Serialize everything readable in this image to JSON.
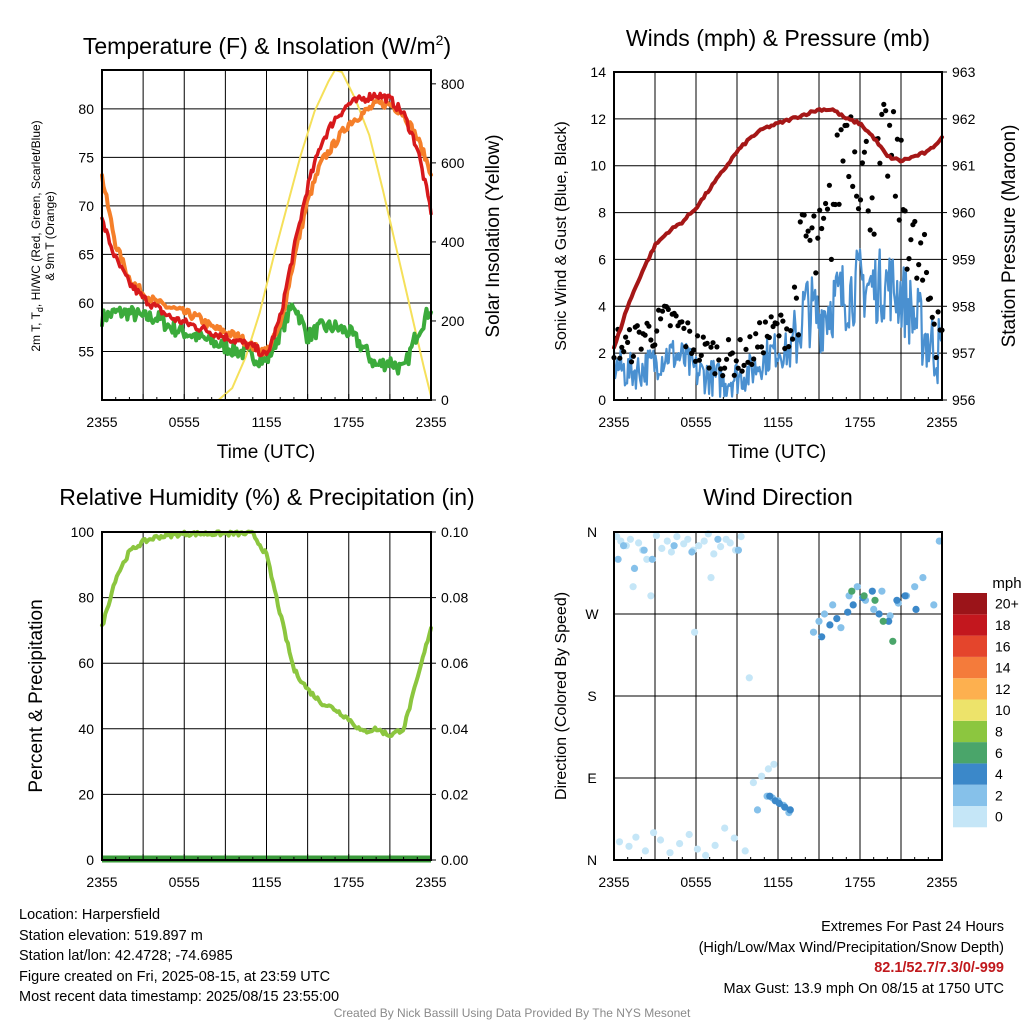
{
  "panels": {
    "temp": {
      "title_main": "Temperature (F) & Insolation (W/m",
      "title_sup": "2",
      "title_end": ")",
      "ylabel_line1": "2m T, T",
      "ylabel_sub": "d",
      "ylabel_line1_end": ", HI/WC (Red, Green, Scarlet/Blue)",
      "ylabel_line2": "& 9m T (Orange)",
      "y2label": "Solar Insolation (Yellow)",
      "xlabel": "Time (UTC)"
    },
    "wind": {
      "title": "Winds (mph) & Pressure (mb)",
      "ylabel": "Sonic Wind & Gust (Blue, Black)",
      "y2label": "Station Pressure (Maroon)",
      "xlabel": "Time (UTC)"
    },
    "rh": {
      "title": "Relative Humidity (%) & Precipitation (in)",
      "ylabel": "Percent & Precipitation"
    },
    "dir": {
      "title": "Wind Direction",
      "ylabel": "Direction (Colored By Speed)",
      "colorbar_title": "mph"
    }
  },
  "colors": {
    "temp_2m": "#d7191c",
    "temp_9m": "#f57f2a",
    "dewpoint": "#3bab3b",
    "insolation": "#f5e05a",
    "wind": "#4a90d0",
    "gust": "#000000",
    "pressure": "#a51717",
    "rh": "#8cc63f",
    "precip": "#3a9a3a"
  },
  "chart_data": [
    {
      "id": "temp",
      "type": "line",
      "title": "Temperature (F) & Insolation (W/m2)",
      "xlabel": "Time (UTC)",
      "ylabel": "2m T, Td, HI/WC (Red, Green, Scarlet/Blue) & 9m T (Orange)",
      "y2label": "Solar Insolation (Yellow)",
      "xticks": [
        "2355",
        "0555",
        "1155",
        "1755",
        "2355"
      ],
      "ylim": [
        50,
        84
      ],
      "yticks": [
        55,
        60,
        65,
        70,
        75,
        80
      ],
      "y2lim": [
        0,
        835
      ],
      "y2ticks": [
        0,
        200,
        400,
        600,
        800
      ],
      "grid": true,
      "series": [
        {
          "name": "2m T",
          "axis": "left",
          "x": [
            0,
            1,
            2,
            3,
            4,
            5,
            6,
            7,
            8,
            9,
            10,
            11,
            12,
            13,
            14,
            15,
            16,
            17,
            18,
            19,
            20,
            21,
            22,
            23,
            24
          ],
          "values": [
            68.5,
            64.5,
            62,
            60.5,
            59.5,
            58.5,
            58,
            57.5,
            57,
            56.5,
            56,
            55.5,
            54.5,
            58.5,
            65.5,
            72,
            76.5,
            79,
            80.5,
            81,
            81.5,
            81,
            79.5,
            76,
            69.5
          ]
        },
        {
          "name": "9m T",
          "axis": "left",
          "x": [
            0,
            1,
            2,
            3,
            4,
            5,
            6,
            7,
            8,
            9,
            10,
            11,
            12,
            13,
            14,
            15,
            16,
            17,
            18,
            19,
            20,
            21,
            22,
            23,
            24
          ],
          "values": [
            73,
            66,
            62.5,
            61,
            60,
            59.5,
            59,
            58.5,
            57.5,
            57,
            56.5,
            55.5,
            55,
            57.5,
            64.5,
            70.5,
            74.5,
            76.5,
            78.5,
            79.5,
            80.5,
            80.5,
            79.5,
            77,
            73.5
          ]
        },
        {
          "name": "Td",
          "axis": "left",
          "x": [
            0,
            1,
            2,
            3,
            4,
            5,
            6,
            7,
            8,
            9,
            10,
            11,
            12,
            13,
            14,
            15,
            16,
            17,
            18,
            19,
            20,
            21,
            22,
            23,
            24
          ],
          "values": [
            58.5,
            59,
            59,
            58.5,
            58.5,
            57.5,
            57,
            56.5,
            56,
            55.5,
            55,
            54.5,
            54,
            57,
            60,
            56.5,
            57.5,
            57.5,
            57,
            55.5,
            53.5,
            54,
            53,
            57,
            59.5
          ]
        },
        {
          "name": "Solar Insolation",
          "axis": "right",
          "x": [
            0,
            8.5,
            9.5,
            10.5,
            11.5,
            12.5,
            13.5,
            14.5,
            15.5,
            16.5,
            17,
            17.5,
            18.5,
            19.5,
            20.5,
            21.5,
            22.5,
            23.5,
            24
          ],
          "values": [
            0,
            0,
            30,
            110,
            220,
            360,
            490,
            620,
            730,
            805,
            835,
            830,
            760,
            670,
            530,
            380,
            230,
            80,
            10
          ]
        }
      ]
    },
    {
      "id": "wind",
      "type": "line",
      "title": "Winds (mph) & Pressure (mb)",
      "xlabel": "Time (UTC)",
      "ylabel": "Sonic Wind & Gust (Blue, Black)",
      "y2label": "Station Pressure (Maroon)",
      "xticks": [
        "2355",
        "0555",
        "1155",
        "1755",
        "2355"
      ],
      "ylim": [
        0,
        14
      ],
      "yticks": [
        0,
        2,
        4,
        6,
        8,
        10,
        12,
        14
      ],
      "y2lim": [
        956,
        963
      ],
      "y2ticks": [
        956,
        957,
        958,
        959,
        960,
        961,
        962,
        963
      ],
      "grid": true,
      "series": [
        {
          "name": "Sonic Wind",
          "axis": "left",
          "x": [
            0,
            1,
            2,
            3,
            4,
            5,
            6,
            7,
            8,
            9,
            10,
            11,
            12,
            13,
            14,
            15,
            16,
            17,
            18,
            19,
            20,
            21,
            22,
            23,
            24
          ],
          "values": [
            1.5,
            1.2,
            1.3,
            1.6,
            2,
            1.8,
            1.2,
            1,
            0.8,
            1,
            1.2,
            1.8,
            2.2,
            2,
            4,
            3.5,
            4.2,
            4.5,
            5,
            4.8,
            5,
            4.5,
            3.5,
            2.5,
            2
          ]
        },
        {
          "name": "Gust",
          "axis": "left",
          "x": [
            0,
            1,
            2,
            3,
            4,
            5,
            6,
            7,
            8,
            9,
            10,
            11,
            12,
            13,
            14,
            15,
            16,
            17,
            18,
            19,
            20,
            21,
            22,
            23,
            24
          ],
          "values": [
            2.5,
            2.2,
            2.8,
            3,
            3.5,
            3,
            2.2,
            2,
            1.8,
            1.8,
            2,
            2.8,
            3,
            3,
            7,
            6,
            8,
            12,
            10,
            9,
            11,
            9,
            6,
            4.5,
            3.5
          ]
        },
        {
          "name": "Station Pressure",
          "axis": "right",
          "x": [
            0,
            1,
            2,
            3,
            4,
            5,
            6,
            7,
            8,
            9,
            10,
            11,
            12,
            13,
            14,
            15,
            16,
            17,
            18,
            19,
            20,
            21,
            22,
            23,
            24
          ],
          "values": [
            957.1,
            958,
            958.7,
            959.3,
            959.6,
            959.8,
            960.1,
            960.5,
            960.9,
            961.3,
            961.6,
            961.8,
            961.9,
            962,
            962.1,
            962.2,
            962.2,
            962,
            961.9,
            961.6,
            961.2,
            961.1,
            961.2,
            961.3,
            961.6
          ]
        }
      ]
    },
    {
      "id": "rh",
      "type": "line",
      "title": "Relative Humidity (%) & Precipitation (in)",
      "ylabel": "Percent & Precipitation",
      "xticks": [
        "2355",
        "0555",
        "1155",
        "1755",
        "2355"
      ],
      "ylim": [
        0,
        100
      ],
      "yticks": [
        0,
        20,
        40,
        60,
        80,
        100
      ],
      "y2lim": [
        0,
        0.1
      ],
      "y2ticks": [
        "0.00",
        "0.02",
        "0.04",
        "0.06",
        "0.08",
        "0.10"
      ],
      "grid": true,
      "series": [
        {
          "name": "Relative Humidity",
          "axis": "left",
          "x": [
            0,
            1,
            2,
            3,
            4,
            5,
            6,
            7,
            8,
            9,
            10,
            11,
            12,
            13,
            14,
            15,
            16,
            17,
            18,
            19,
            20,
            21,
            22,
            23,
            24
          ],
          "values": [
            71,
            86,
            94,
            97,
            98.5,
            99,
            99.5,
            99.5,
            99.5,
            99.5,
            99.5,
            99.5,
            93,
            75,
            58,
            52,
            48,
            46,
            43,
            39,
            40,
            38,
            40,
            55,
            71
          ]
        },
        {
          "name": "Precipitation",
          "axis": "right",
          "x": [
            0,
            24
          ],
          "values": [
            0,
            0
          ]
        }
      ]
    },
    {
      "id": "dir",
      "type": "scatter",
      "title": "Wind Direction",
      "ylabel": "Direction (Colored By Speed)",
      "xticks": [
        "2355",
        "0555",
        "1155",
        "1755",
        "2355"
      ],
      "ylim": [
        0,
        360
      ],
      "yticks": [
        "N",
        "E",
        "S",
        "W",
        "N"
      ],
      "grid": true,
      "colorbar": {
        "title": "mph",
        "labels": [
          "0",
          "2",
          "4",
          "6",
          "8",
          "10",
          "12",
          "14",
          "16",
          "18",
          "20+"
        ],
        "colors": [
          "#c5e6f7",
          "#86c1ea",
          "#3b88c9",
          "#4aa56a",
          "#8cc63f",
          "#ede36a",
          "#fdb04f",
          "#f47b3b",
          "#e4452c",
          "#c3171e",
          "#9b1419"
        ]
      },
      "series": [
        {
          "name": "Direction (calm, 0-2 mph)",
          "x": [
            0.2,
            0.5,
            0.9,
            1.2,
            1.8,
            2.1,
            2.4,
            3.1,
            3.5,
            3.9,
            4.2,
            4.6,
            5.1,
            5.4,
            5.8,
            6.2,
            6.6,
            6.9,
            7.3,
            7.8,
            8.2,
            8.5,
            8.9,
            9.3,
            0.4,
            1.1,
            1.6,
            2.3,
            2.9,
            3.4,
            4.1,
            4.8,
            5.5,
            6.1,
            6.7,
            7.4,
            8.1,
            8.8,
            9.6,
            10.2,
            10.8,
            11.3,
            11.7,
            1.4,
            2.7,
            5.9,
            7.1,
            9.9
          ],
          "values": [
            355,
            350,
            345,
            352,
            348,
            340,
            330,
            356,
            342,
            350,
            338,
            355,
            347,
            352,
            340,
            345,
            350,
            358,
            336,
            344,
            352,
            348,
            340,
            355,
            20,
            15,
            25,
            10,
            30,
            22,
            8,
            18,
            28,
            12,
            5,
            16,
            35,
            24,
            10,
            85,
            92,
            100,
            105,
            300,
            290,
            250,
            310,
            200
          ]
        },
        {
          "name": "Direction (2-4 mph)",
          "x": [
            1.5,
            2.8,
            4.4,
            5.7,
            7.6,
            9.1,
            10.5,
            11.2,
            11.6,
            12,
            12.4,
            12.8,
            14.6,
            15,
            15.4,
            16,
            16.6,
            17.2,
            17.8,
            18.4,
            19,
            19.6,
            20.2,
            20.8,
            21.4,
            22,
            22.6,
            23.4,
            23.8,
            0.3,
            0.7,
            2.2
          ],
          "values": [
            320,
            330,
            345,
            338,
            352,
            340,
            55,
            70,
            68,
            65,
            60,
            52,
            250,
            262,
            270,
            280,
            255,
            290,
            300,
            285,
            275,
            295,
            268,
            282,
            290,
            300,
            310,
            280,
            350,
            330,
            345,
            340
          ]
        },
        {
          "name": "Direction (4-6 mph)",
          "x": [
            11.4,
            11.8,
            12.1,
            12.5,
            12.9,
            15.2,
            15.8,
            16.3,
            17.1,
            17.5,
            18.2,
            18.9,
            19.4,
            20.1,
            20.7,
            21.3,
            22.1
          ],
          "values": [
            70,
            65,
            62,
            58,
            55,
            245,
            258,
            265,
            272,
            280,
            288,
            295,
            270,
            262,
            285,
            290,
            275
          ]
        },
        {
          "name": "Direction (6-8 mph)",
          "x": [
            17.4,
            18.3,
            19.1,
            19.7,
            20.4
          ],
          "values": [
            295,
            290,
            285,
            262,
            240
          ]
        }
      ]
    }
  ],
  "info": {
    "location": "Location: Harpersfield",
    "elevation": "Station elevation: 519.897 m",
    "latlon": "Station lat/lon: 42.4728; -74.6985",
    "created": "Figure created on Fri, 2025-08-15, at 23:59 UTC",
    "recent": "Most recent data timestamp: 2025/08/15 23:55:00",
    "extremes_title": "Extremes For Past 24 Hours",
    "extremes_sub": "(High/Low/Max Wind/Precipitation/Snow Depth)",
    "extremes_values": "82.1/52.7/7.3/0/-999",
    "max_gust": "Max Gust: 13.9 mph On 08/15 at 1750 UTC",
    "credit": "Created By Nick Bassill Using Data Provided By The NYS Mesonet"
  }
}
